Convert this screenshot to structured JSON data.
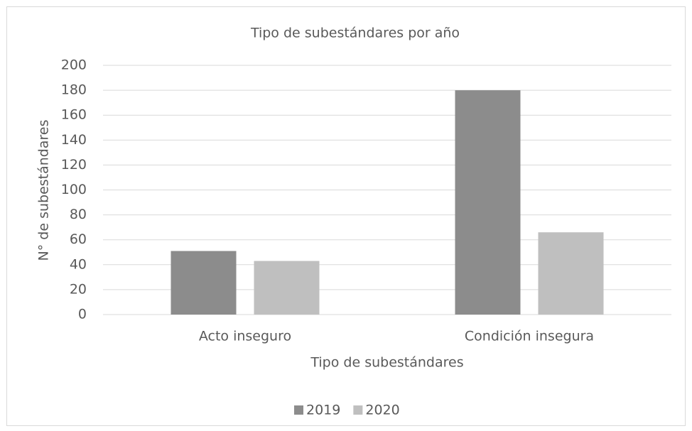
{
  "chart_data": {
    "type": "bar",
    "title": "Tipo de subestándares por año",
    "x_label": "Tipo de subestándares",
    "y_label": "N° de subestándares",
    "categories": [
      "Acto inseguro",
      "Condición insegura"
    ],
    "series": [
      {
        "name": "2019",
        "color": "#8c8c8c",
        "values": [
          51,
          180
        ]
      },
      {
        "name": "2020",
        "color": "#bfbfbf",
        "values": [
          43,
          66
        ]
      }
    ],
    "ylim": [
      0,
      200
    ],
    "yticks": [
      0,
      20,
      40,
      60,
      80,
      100,
      120,
      140,
      160,
      180,
      200
    ],
    "grid": true,
    "legend": "bottom"
  }
}
